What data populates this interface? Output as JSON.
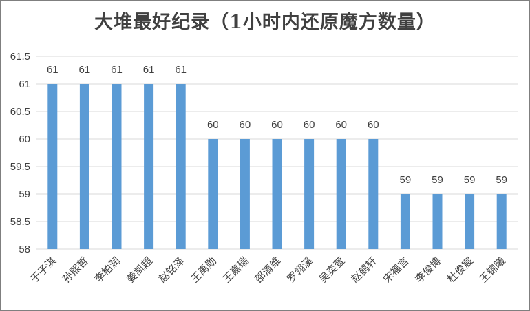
{
  "chart_data": {
    "type": "bar",
    "title": "大堆最好纪录（1小时内还原魔方数量）",
    "categories": [
      "于子淇",
      "孙熙哲",
      "李柏润",
      "姜凯超",
      "赵铭泽",
      "王禹勋",
      "王嘉瑞",
      "邵清维",
      "罗翎溪",
      "吴奕萱",
      "赵鹤轩",
      "宋福言",
      "李俊博",
      "杜俊宸",
      "王锦曦"
    ],
    "values": [
      61,
      61,
      61,
      61,
      61,
      60,
      60,
      60,
      60,
      60,
      60,
      59,
      59,
      59,
      59
    ],
    "ylim": [
      58,
      61.5
    ],
    "yticks": [
      "58",
      "58.5",
      "59",
      "59.5",
      "60",
      "60.5",
      "61",
      "61.5"
    ],
    "xlabel": "",
    "ylabel": "",
    "grid": true,
    "bar_color": "#5b9bd5"
  }
}
